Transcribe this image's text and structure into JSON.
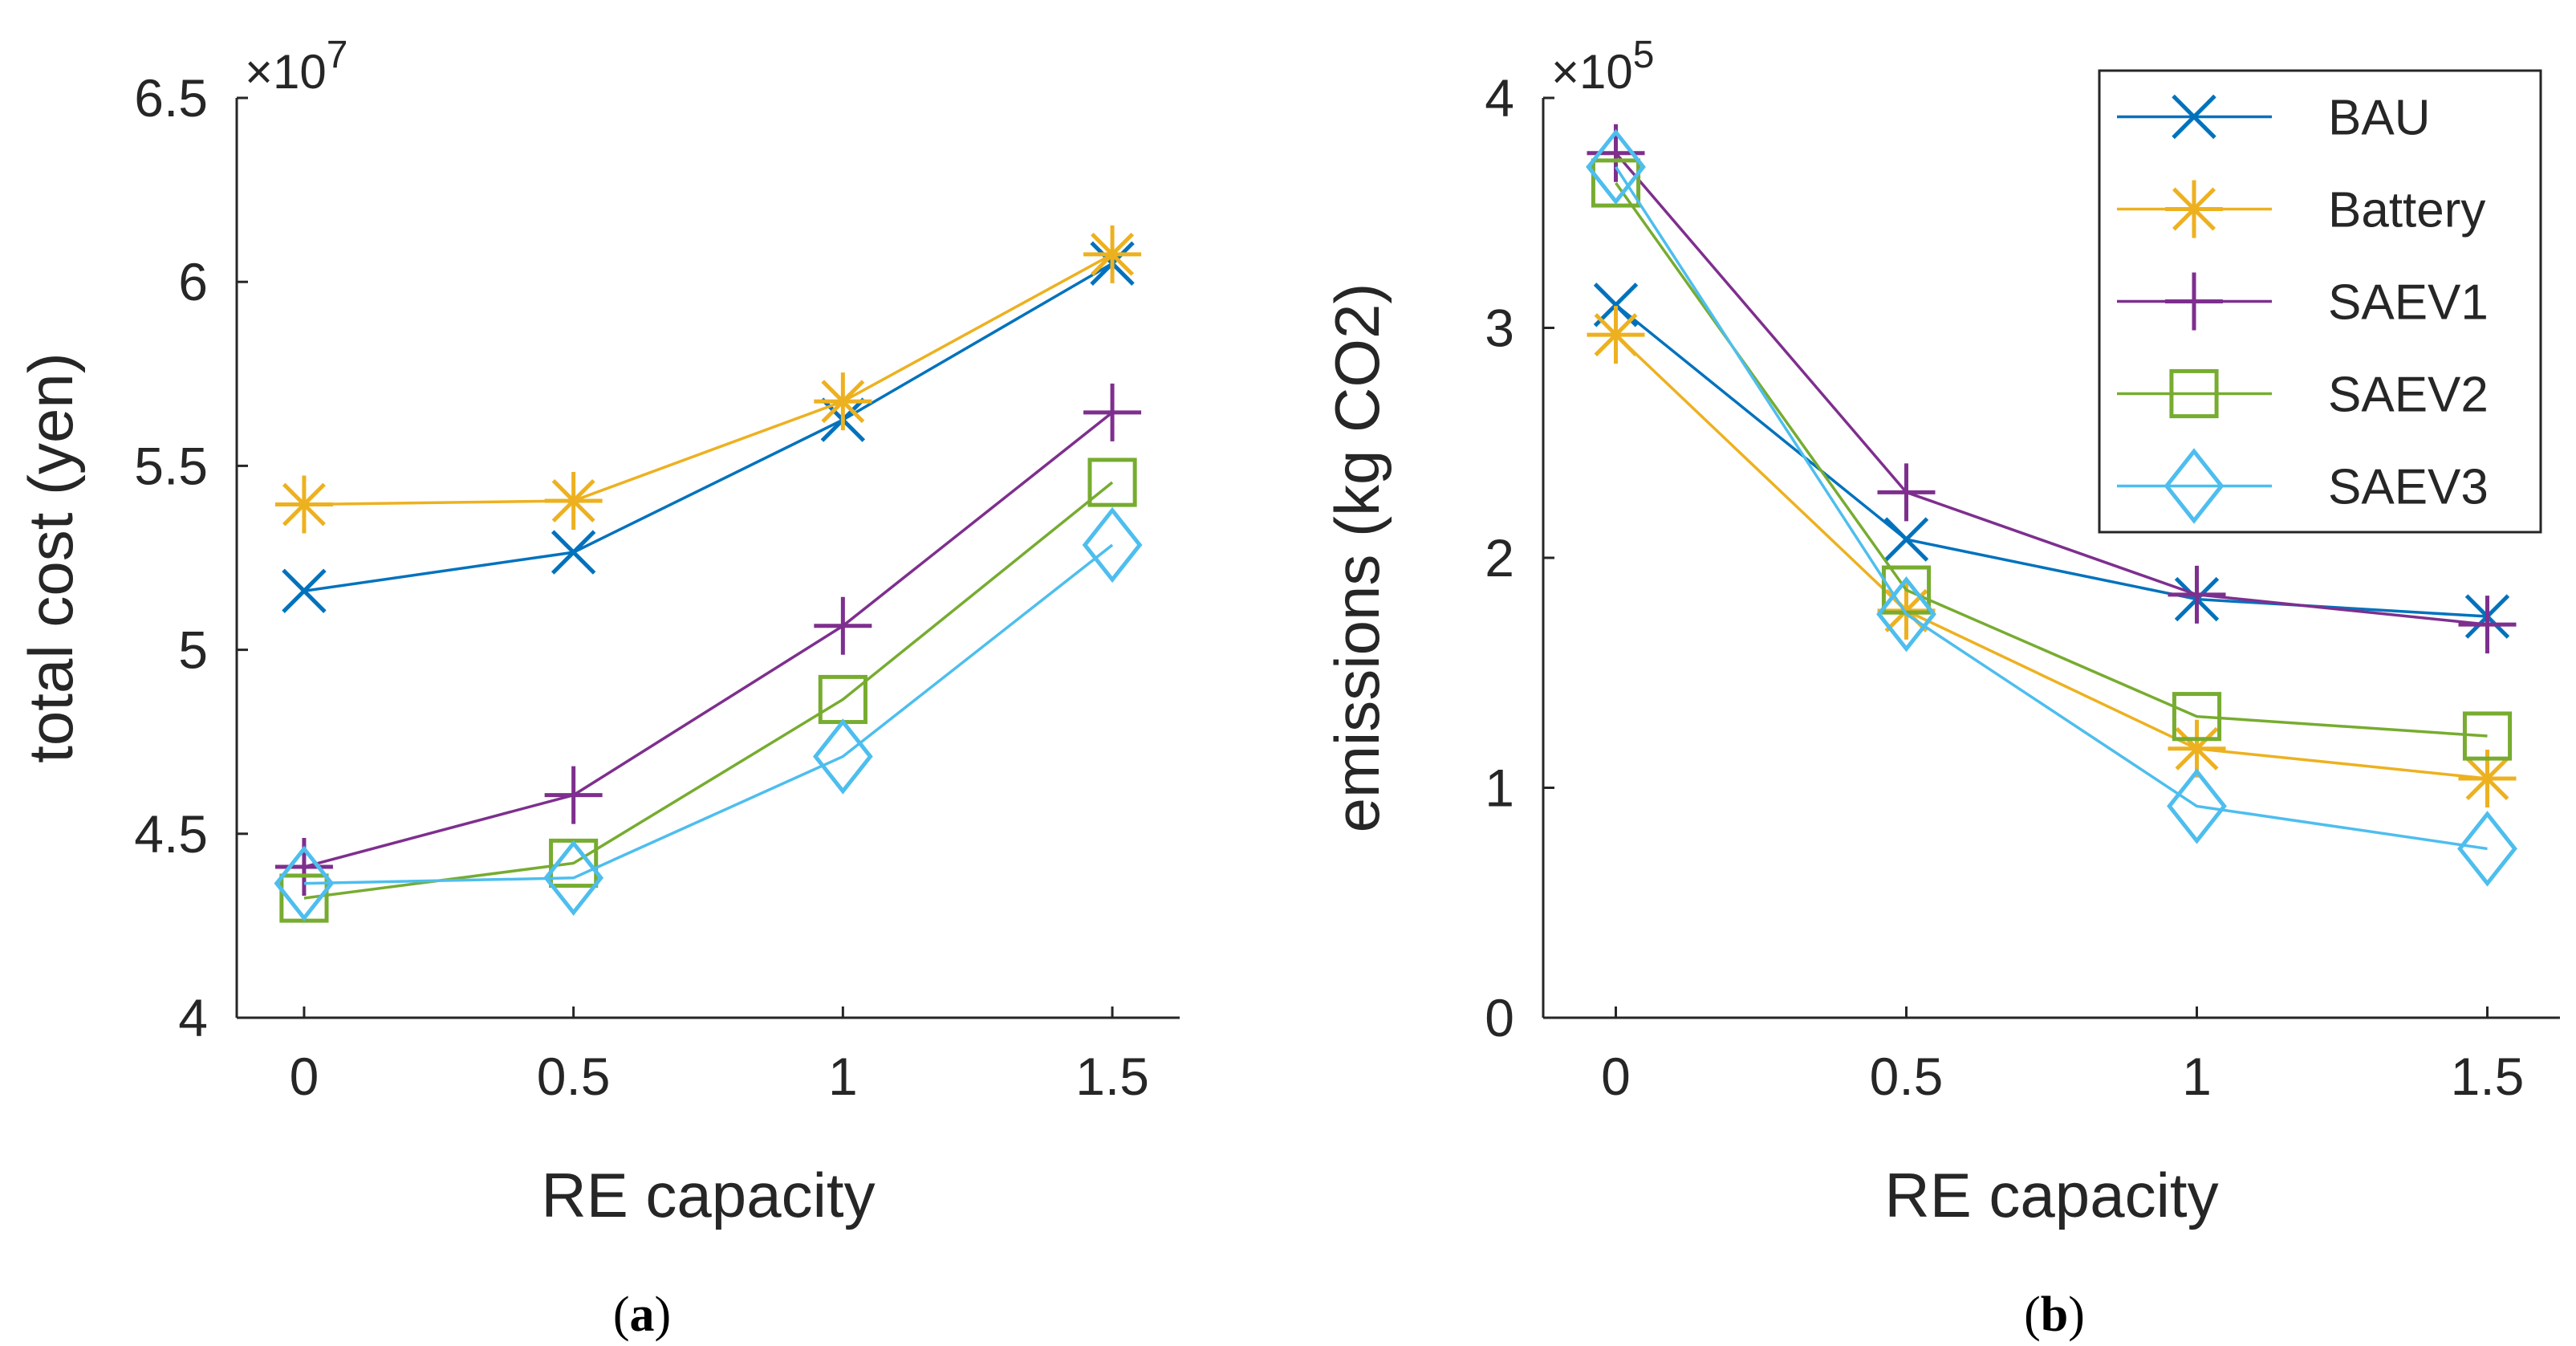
{
  "chart_data": [
    {
      "type": "line",
      "caption_letter": "a",
      "xlabel": "RE capacity",
      "ylabel": "total cost (yen)",
      "exponent_prefix": "×10",
      "exponent_power": "7",
      "x": [
        0,
        0.5,
        1,
        1.5
      ],
      "xlim": [
        -0.125,
        1.625
      ],
      "ylim": [
        4,
        6.5
      ],
      "xticks": [
        0,
        0.5,
        1,
        1.5
      ],
      "yticks": [
        4,
        4.5,
        5,
        5.5,
        6,
        6.5
      ],
      "xtick_labels": [
        "0",
        "0.5",
        "1",
        "1.5"
      ],
      "ytick_labels": [
        "4",
        "4.5",
        "5",
        "5.5",
        "6",
        "6.5"
      ],
      "series": [
        {
          "name": "BAU",
          "color": "#0072BD",
          "marker": "x",
          "values": [
            5.16,
            5.265,
            5.625,
            6.05
          ]
        },
        {
          "name": "Battery",
          "color": "#EDB120",
          "marker": "asterisk",
          "values": [
            5.395,
            5.405,
            5.675,
            6.075
          ]
        },
        {
          "name": "SAEV1",
          "color": "#7E2F8E",
          "marker": "plus",
          "values": [
            4.41,
            4.605,
            5.065,
            5.645
          ]
        },
        {
          "name": "SAEV2",
          "color": "#77AC30",
          "marker": "square",
          "values": [
            4.325,
            4.42,
            4.865,
            5.455
          ]
        },
        {
          "name": "SAEV3",
          "color": "#4DBEEE",
          "marker": "diamond",
          "values": [
            4.365,
            4.38,
            4.71,
            5.285
          ]
        }
      ]
    },
    {
      "type": "line",
      "caption_letter": "b",
      "xlabel": "RE capacity",
      "ylabel": "emissions (kg CO2)",
      "exponent_prefix": "×10",
      "exponent_power": "5",
      "x": [
        0,
        0.5,
        1,
        1.5
      ],
      "xlim": [
        -0.125,
        1.625
      ],
      "ylim": [
        0,
        4
      ],
      "xticks": [
        0,
        0.5,
        1,
        1.5
      ],
      "yticks": [
        0,
        1,
        2,
        3,
        4
      ],
      "xtick_labels": [
        "0",
        "0.5",
        "1",
        "1.5"
      ],
      "ytick_labels": [
        "0",
        "1",
        "2",
        "3",
        "4"
      ],
      "legend_position": "top-right",
      "series": [
        {
          "name": "BAU",
          "color": "#0072BD",
          "marker": "x",
          "values": [
            3.1,
            2.08,
            1.82,
            1.745
          ]
        },
        {
          "name": "Battery",
          "color": "#EDB120",
          "marker": "asterisk",
          "values": [
            2.97,
            1.77,
            1.17,
            1.04
          ]
        },
        {
          "name": "SAEV1",
          "color": "#7E2F8E",
          "marker": "plus",
          "values": [
            3.76,
            2.285,
            1.84,
            1.71
          ]
        },
        {
          "name": "SAEV2",
          "color": "#77AC30",
          "marker": "square",
          "values": [
            3.63,
            1.86,
            1.31,
            1.225
          ]
        },
        {
          "name": "SAEV3",
          "color": "#4DBEEE",
          "marker": "diamond",
          "values": [
            3.7,
            1.755,
            0.92,
            0.735
          ]
        }
      ]
    }
  ]
}
